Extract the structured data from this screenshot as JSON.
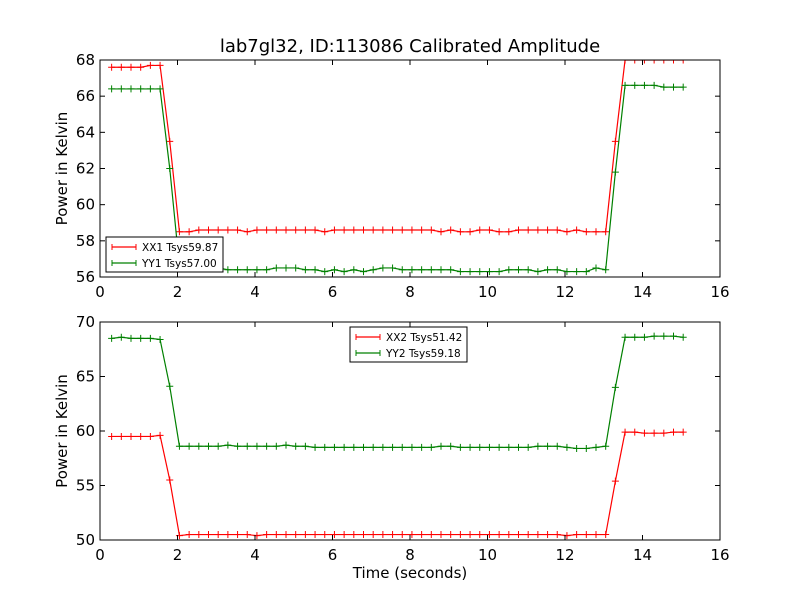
{
  "figure": {
    "title": "lab7gl32, ID:113086 Calibrated Amplitude",
    "xlabel": "Time (seconds)"
  },
  "chart_data": [
    {
      "type": "line",
      "xlabel": "",
      "ylabel": "Power in Kelvin",
      "xlim": [
        0,
        16
      ],
      "ylim": [
        56,
        68
      ],
      "xticks": [
        0,
        2,
        4,
        6,
        8,
        10,
        12,
        14,
        16
      ],
      "yticks": [
        56,
        58,
        60,
        62,
        64,
        66,
        68
      ],
      "legend": "lower-left",
      "x": [
        0.3,
        0.55,
        0.8,
        1.05,
        1.3,
        1.55,
        1.8,
        2.05,
        2.3,
        2.55,
        2.8,
        3.05,
        3.3,
        3.55,
        3.8,
        4.05,
        4.3,
        4.55,
        4.8,
        5.05,
        5.3,
        5.55,
        5.8,
        6.05,
        6.3,
        6.55,
        6.8,
        7.05,
        7.3,
        7.55,
        7.8,
        8.05,
        8.3,
        8.55,
        8.8,
        9.05,
        9.3,
        9.55,
        9.8,
        10.05,
        10.3,
        10.55,
        10.8,
        11.05,
        11.3,
        11.55,
        11.8,
        12.05,
        12.3,
        12.55,
        12.8,
        13.05,
        13.3,
        13.55,
        13.8,
        14.05,
        14.3,
        14.55,
        14.8,
        15.05
      ],
      "series": [
        {
          "name": "XX1 Tsys59.87",
          "color": "#ff0000",
          "values": [
            67.6,
            67.6,
            67.6,
            67.6,
            67.7,
            67.7,
            63.5,
            58.5,
            58.5,
            58.6,
            58.6,
            58.6,
            58.6,
            58.6,
            58.5,
            58.6,
            58.6,
            58.6,
            58.6,
            58.6,
            58.6,
            58.6,
            58.5,
            58.6,
            58.6,
            58.6,
            58.6,
            58.6,
            58.6,
            58.6,
            58.6,
            58.6,
            58.6,
            58.6,
            58.5,
            58.6,
            58.5,
            58.5,
            58.6,
            58.6,
            58.5,
            58.5,
            58.6,
            58.6,
            58.6,
            58.6,
            58.6,
            58.5,
            58.6,
            58.5,
            58.5,
            58.5,
            63.5,
            68.0,
            68.0,
            68.0,
            68.0,
            68.0,
            68.0,
            68.0
          ]
        },
        {
          "name": "YY1 Tsys57.00",
          "color": "#008000",
          "values": [
            66.4,
            66.4,
            66.4,
            66.4,
            66.4,
            66.4,
            62.0,
            56.6,
            56.5,
            56.5,
            56.5,
            56.5,
            56.4,
            56.4,
            56.4,
            56.4,
            56.4,
            56.5,
            56.5,
            56.5,
            56.4,
            56.4,
            56.3,
            56.4,
            56.3,
            56.4,
            56.3,
            56.4,
            56.5,
            56.5,
            56.4,
            56.4,
            56.4,
            56.4,
            56.4,
            56.4,
            56.3,
            56.3,
            56.3,
            56.3,
            56.3,
            56.4,
            56.4,
            56.4,
            56.3,
            56.4,
            56.4,
            56.3,
            56.3,
            56.3,
            56.5,
            56.4,
            61.8,
            66.6,
            66.6,
            66.6,
            66.6,
            66.5,
            66.5,
            66.5
          ]
        }
      ]
    },
    {
      "type": "line",
      "xlabel": "Time (seconds)",
      "ylabel": "Power in Kelvin",
      "xlim": [
        0,
        16
      ],
      "ylim": [
        50,
        70
      ],
      "xticks": [
        0,
        2,
        4,
        6,
        8,
        10,
        12,
        14,
        16
      ],
      "yticks": [
        50,
        55,
        60,
        65,
        70
      ],
      "legend": "upper-center",
      "x": [
        0.3,
        0.55,
        0.8,
        1.05,
        1.3,
        1.55,
        1.8,
        2.05,
        2.3,
        2.55,
        2.8,
        3.05,
        3.3,
        3.55,
        3.8,
        4.05,
        4.3,
        4.55,
        4.8,
        5.05,
        5.3,
        5.55,
        5.8,
        6.05,
        6.3,
        6.55,
        6.8,
        7.05,
        7.3,
        7.55,
        7.8,
        8.05,
        8.3,
        8.55,
        8.8,
        9.05,
        9.3,
        9.55,
        9.8,
        10.05,
        10.3,
        10.55,
        10.8,
        11.05,
        11.3,
        11.55,
        11.8,
        12.05,
        12.3,
        12.55,
        12.8,
        13.05,
        13.3,
        13.55,
        13.8,
        14.05,
        14.3,
        14.55,
        14.8,
        15.05
      ],
      "series": [
        {
          "name": "XX2 Tsys51.42",
          "color": "#ff0000",
          "values": [
            59.5,
            59.5,
            59.5,
            59.5,
            59.5,
            59.6,
            55.5,
            50.4,
            50.5,
            50.5,
            50.5,
            50.5,
            50.5,
            50.5,
            50.5,
            50.4,
            50.5,
            50.5,
            50.5,
            50.5,
            50.5,
            50.5,
            50.5,
            50.5,
            50.5,
            50.5,
            50.5,
            50.5,
            50.5,
            50.5,
            50.5,
            50.5,
            50.5,
            50.5,
            50.5,
            50.5,
            50.5,
            50.5,
            50.5,
            50.5,
            50.5,
            50.5,
            50.5,
            50.5,
            50.5,
            50.5,
            50.5,
            50.4,
            50.5,
            50.5,
            50.5,
            50.5,
            55.4,
            59.9,
            59.9,
            59.8,
            59.8,
            59.8,
            59.9,
            59.9
          ]
        },
        {
          "name": "YY2 Tsys59.18",
          "color": "#008000",
          "values": [
            68.5,
            68.6,
            68.5,
            68.5,
            68.5,
            68.4,
            64.1,
            58.6,
            58.6,
            58.6,
            58.6,
            58.6,
            58.7,
            58.6,
            58.6,
            58.6,
            58.6,
            58.6,
            58.7,
            58.6,
            58.6,
            58.5,
            58.5,
            58.5,
            58.5,
            58.5,
            58.5,
            58.5,
            58.5,
            58.5,
            58.5,
            58.5,
            58.5,
            58.5,
            58.6,
            58.6,
            58.5,
            58.5,
            58.5,
            58.5,
            58.5,
            58.5,
            58.5,
            58.5,
            58.6,
            58.6,
            58.6,
            58.5,
            58.4,
            58.4,
            58.5,
            58.6,
            64.0,
            68.6,
            68.6,
            68.6,
            68.7,
            68.7,
            68.7,
            68.6
          ]
        }
      ]
    }
  ]
}
